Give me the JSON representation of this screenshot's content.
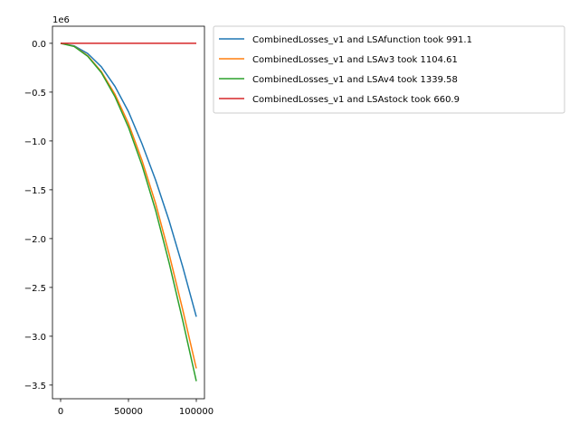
{
  "chart_data": {
    "type": "line",
    "title": "",
    "xlabel": "",
    "ylabel": "",
    "y_offset_label": "1e6",
    "xlim": [
      -6000,
      106000
    ],
    "ylim": [
      -3.64,
      0.175
    ],
    "x_ticks": [
      0,
      50000,
      100000
    ],
    "x_tick_labels": [
      "0",
      "50000",
      "100000"
    ],
    "y_ticks": [
      0.0,
      -0.5,
      -1.0,
      -1.5,
      -2.0,
      -2.5,
      -3.0,
      -3.5
    ],
    "y_tick_labels": [
      "0.0",
      "−0.5",
      "−1.0",
      "−1.5",
      "−2.0",
      "−2.5",
      "−3.0",
      "−3.5"
    ],
    "grid": false,
    "legend_position": "outside-top-right",
    "x": [
      0,
      10000,
      20000,
      30000,
      40000,
      50000,
      60000,
      70000,
      80000,
      90000,
      100000
    ],
    "series": [
      {
        "name": "CombinedLosses_v1 and LSAfunction took 991.1",
        "color": "#1f77b4",
        "values": [
          0,
          -0.026,
          -0.105,
          -0.24,
          -0.44,
          -0.7,
          -1.03,
          -1.4,
          -1.82,
          -2.29,
          -2.8
        ]
      },
      {
        "name": "CombinedLosses_v1 and LSAv3 took 1104.61",
        "color": "#ff7f0e",
        "values": [
          0,
          -0.031,
          -0.128,
          -0.29,
          -0.52,
          -0.82,
          -1.2,
          -1.64,
          -2.16,
          -2.73,
          -3.33
        ]
      },
      {
        "name": "CombinedLosses_v1 and LSAv4 took 1339.58",
        "color": "#2ca02c",
        "values": [
          0,
          -0.032,
          -0.133,
          -0.3,
          -0.545,
          -0.86,
          -1.25,
          -1.71,
          -2.25,
          -2.84,
          -3.46
        ]
      },
      {
        "name": "CombinedLosses_v1 and LSAstock took 660.9",
        "color": "#d62728",
        "values": [
          0,
          0,
          0,
          0,
          0,
          0,
          0,
          0,
          0,
          0,
          0
        ]
      }
    ]
  }
}
